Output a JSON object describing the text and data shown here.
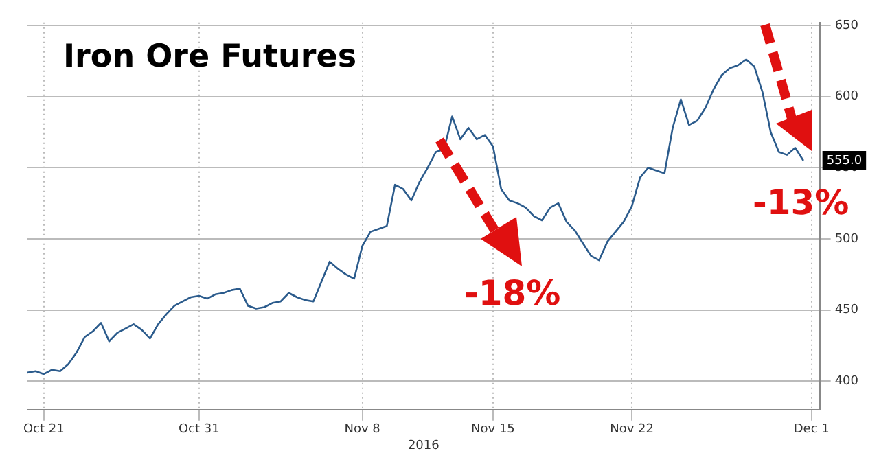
{
  "chart_data": {
    "type": "line",
    "title": "Iron Ore Futures",
    "xlabel": "2016",
    "categories": [
      null,
      null,
      "Oct 21",
      null,
      null,
      null,
      null,
      null,
      null,
      null,
      null,
      null,
      null,
      null,
      null,
      null,
      null,
      null,
      null,
      null,
      null,
      "Oct 31",
      null,
      null,
      null,
      null,
      null,
      null,
      null,
      null,
      null,
      null,
      null,
      null,
      null,
      null,
      null,
      null,
      null,
      null,
      null,
      "Nov 8",
      null,
      null,
      null,
      null,
      null,
      null,
      null,
      null,
      null,
      null,
      null,
      null,
      null,
      null,
      null,
      "Nov 15",
      null,
      null,
      null,
      null,
      null,
      null,
      null,
      null,
      null,
      null,
      null,
      null,
      null,
      null,
      null,
      null,
      "Nov 22",
      null,
      null,
      null,
      null,
      null,
      null,
      null,
      null,
      null,
      null,
      null,
      null,
      null,
      null,
      null,
      null,
      null,
      null,
      null,
      null,
      null,
      "Dec 1",
      null
    ],
    "series": [
      {
        "color": "#2b5b8c",
        "values": [
          406,
          407,
          405,
          408,
          407,
          412,
          420,
          431,
          435,
          441,
          428,
          434,
          437,
          440,
          436,
          430,
          440,
          447,
          453,
          456,
          459,
          460,
          458,
          461,
          462,
          464,
          465,
          453,
          451,
          452,
          455,
          456,
          462,
          459,
          457,
          456,
          470,
          484,
          479,
          475,
          472,
          495,
          505,
          507,
          509,
          538,
          535,
          527,
          540,
          550,
          561,
          563,
          586,
          570,
          578,
          570,
          573,
          565,
          535,
          527,
          525,
          522,
          516,
          513,
          522,
          525,
          512,
          506,
          497,
          488,
          485,
          498,
          505,
          512,
          523,
          543,
          550,
          548,
          546,
          578,
          598,
          580,
          583,
          592,
          605,
          615,
          620,
          622,
          626,
          621,
          603,
          575,
          561,
          559,
          564,
          555,
          null,
          null
        ]
      }
    ],
    "ylim": [
      380,
      652
    ],
    "yticks": [
      400,
      450,
      500,
      550,
      600,
      650
    ],
    "grid": true,
    "marker": "none",
    "line_style": "solid",
    "annotations": [
      "-18%",
      "-13%",
      {
        "text": "555.0",
        "y": 555
      }
    ]
  }
}
